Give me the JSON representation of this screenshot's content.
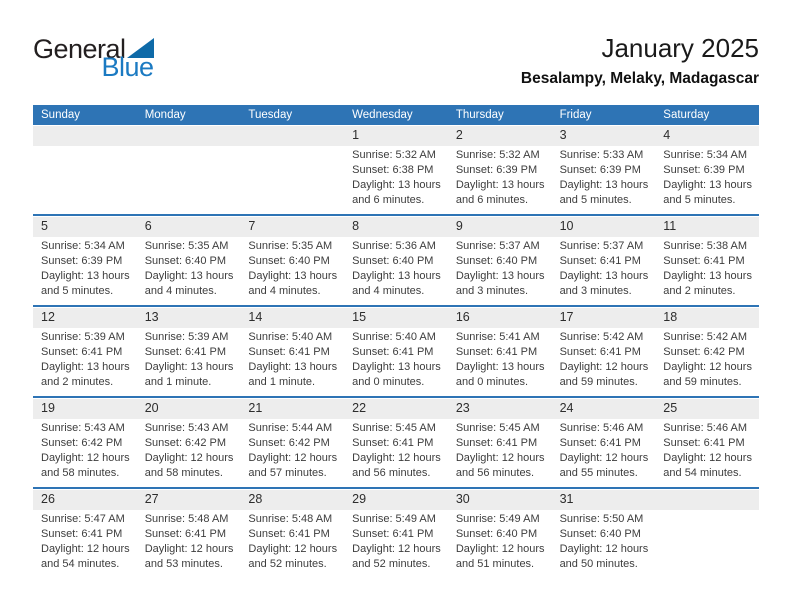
{
  "logo": {
    "part1": "General",
    "part2": "Blue",
    "triangle_color": "#0e6aa8",
    "blue_color": "#1b7ac2"
  },
  "header": {
    "title": "January 2025",
    "subtitle": "Besalampy, Melaky, Madagascar"
  },
  "colors": {
    "weekday_header_bg": "#2e74b5",
    "week_separator": "#2e74b5",
    "day_band_bg": "#ededed",
    "header_text": "#ffffff"
  },
  "calendar": {
    "weekdays": [
      "Sunday",
      "Monday",
      "Tuesday",
      "Wednesday",
      "Thursday",
      "Friday",
      "Saturday"
    ],
    "weeks": [
      [
        null,
        null,
        null,
        {
          "day": "1",
          "lines": [
            "Sunrise: 5:32 AM",
            "Sunset: 6:38 PM",
            "Daylight: 13 hours and 6 minutes."
          ]
        },
        {
          "day": "2",
          "lines": [
            "Sunrise: 5:32 AM",
            "Sunset: 6:39 PM",
            "Daylight: 13 hours and 6 minutes."
          ]
        },
        {
          "day": "3",
          "lines": [
            "Sunrise: 5:33 AM",
            "Sunset: 6:39 PM",
            "Daylight: 13 hours and 5 minutes."
          ]
        },
        {
          "day": "4",
          "lines": [
            "Sunrise: 5:34 AM",
            "Sunset: 6:39 PM",
            "Daylight: 13 hours and 5 minutes."
          ]
        }
      ],
      [
        {
          "day": "5",
          "lines": [
            "Sunrise: 5:34 AM",
            "Sunset: 6:39 PM",
            "Daylight: 13 hours and 5 minutes."
          ]
        },
        {
          "day": "6",
          "lines": [
            "Sunrise: 5:35 AM",
            "Sunset: 6:40 PM",
            "Daylight: 13 hours and 4 minutes."
          ]
        },
        {
          "day": "7",
          "lines": [
            "Sunrise: 5:35 AM",
            "Sunset: 6:40 PM",
            "Daylight: 13 hours and 4 minutes."
          ]
        },
        {
          "day": "8",
          "lines": [
            "Sunrise: 5:36 AM",
            "Sunset: 6:40 PM",
            "Daylight: 13 hours and 4 minutes."
          ]
        },
        {
          "day": "9",
          "lines": [
            "Sunrise: 5:37 AM",
            "Sunset: 6:40 PM",
            "Daylight: 13 hours and 3 minutes."
          ]
        },
        {
          "day": "10",
          "lines": [
            "Sunrise: 5:37 AM",
            "Sunset: 6:41 PM",
            "Daylight: 13 hours and 3 minutes."
          ]
        },
        {
          "day": "11",
          "lines": [
            "Sunrise: 5:38 AM",
            "Sunset: 6:41 PM",
            "Daylight: 13 hours and 2 minutes."
          ]
        }
      ],
      [
        {
          "day": "12",
          "lines": [
            "Sunrise: 5:39 AM",
            "Sunset: 6:41 PM",
            "Daylight: 13 hours and 2 minutes."
          ]
        },
        {
          "day": "13",
          "lines": [
            "Sunrise: 5:39 AM",
            "Sunset: 6:41 PM",
            "Daylight: 13 hours and 1 minute."
          ]
        },
        {
          "day": "14",
          "lines": [
            "Sunrise: 5:40 AM",
            "Sunset: 6:41 PM",
            "Daylight: 13 hours and 1 minute."
          ]
        },
        {
          "day": "15",
          "lines": [
            "Sunrise: 5:40 AM",
            "Sunset: 6:41 PM",
            "Daylight: 13 hours and 0 minutes."
          ]
        },
        {
          "day": "16",
          "lines": [
            "Sunrise: 5:41 AM",
            "Sunset: 6:41 PM",
            "Daylight: 13 hours and 0 minutes."
          ]
        },
        {
          "day": "17",
          "lines": [
            "Sunrise: 5:42 AM",
            "Sunset: 6:41 PM",
            "Daylight: 12 hours and 59 minutes."
          ]
        },
        {
          "day": "18",
          "lines": [
            "Sunrise: 5:42 AM",
            "Sunset: 6:42 PM",
            "Daylight: 12 hours and 59 minutes."
          ]
        }
      ],
      [
        {
          "day": "19",
          "lines": [
            "Sunrise: 5:43 AM",
            "Sunset: 6:42 PM",
            "Daylight: 12 hours and 58 minutes."
          ]
        },
        {
          "day": "20",
          "lines": [
            "Sunrise: 5:43 AM",
            "Sunset: 6:42 PM",
            "Daylight: 12 hours and 58 minutes."
          ]
        },
        {
          "day": "21",
          "lines": [
            "Sunrise: 5:44 AM",
            "Sunset: 6:42 PM",
            "Daylight: 12 hours and 57 minutes."
          ]
        },
        {
          "day": "22",
          "lines": [
            "Sunrise: 5:45 AM",
            "Sunset: 6:41 PM",
            "Daylight: 12 hours and 56 minutes."
          ]
        },
        {
          "day": "23",
          "lines": [
            "Sunrise: 5:45 AM",
            "Sunset: 6:41 PM",
            "Daylight: 12 hours and 56 minutes."
          ]
        },
        {
          "day": "24",
          "lines": [
            "Sunrise: 5:46 AM",
            "Sunset: 6:41 PM",
            "Daylight: 12 hours and 55 minutes."
          ]
        },
        {
          "day": "25",
          "lines": [
            "Sunrise: 5:46 AM",
            "Sunset: 6:41 PM",
            "Daylight: 12 hours and 54 minutes."
          ]
        }
      ],
      [
        {
          "day": "26",
          "lines": [
            "Sunrise: 5:47 AM",
            "Sunset: 6:41 PM",
            "Daylight: 12 hours and 54 minutes."
          ]
        },
        {
          "day": "27",
          "lines": [
            "Sunrise: 5:48 AM",
            "Sunset: 6:41 PM",
            "Daylight: 12 hours and 53 minutes."
          ]
        },
        {
          "day": "28",
          "lines": [
            "Sunrise: 5:48 AM",
            "Sunset: 6:41 PM",
            "Daylight: 12 hours and 52 minutes."
          ]
        },
        {
          "day": "29",
          "lines": [
            "Sunrise: 5:49 AM",
            "Sunset: 6:41 PM",
            "Daylight: 12 hours and 52 minutes."
          ]
        },
        {
          "day": "30",
          "lines": [
            "Sunrise: 5:49 AM",
            "Sunset: 6:40 PM",
            "Daylight: 12 hours and 51 minutes."
          ]
        },
        {
          "day": "31",
          "lines": [
            "Sunrise: 5:50 AM",
            "Sunset: 6:40 PM",
            "Daylight: 12 hours and 50 minutes."
          ]
        },
        null
      ]
    ]
  }
}
